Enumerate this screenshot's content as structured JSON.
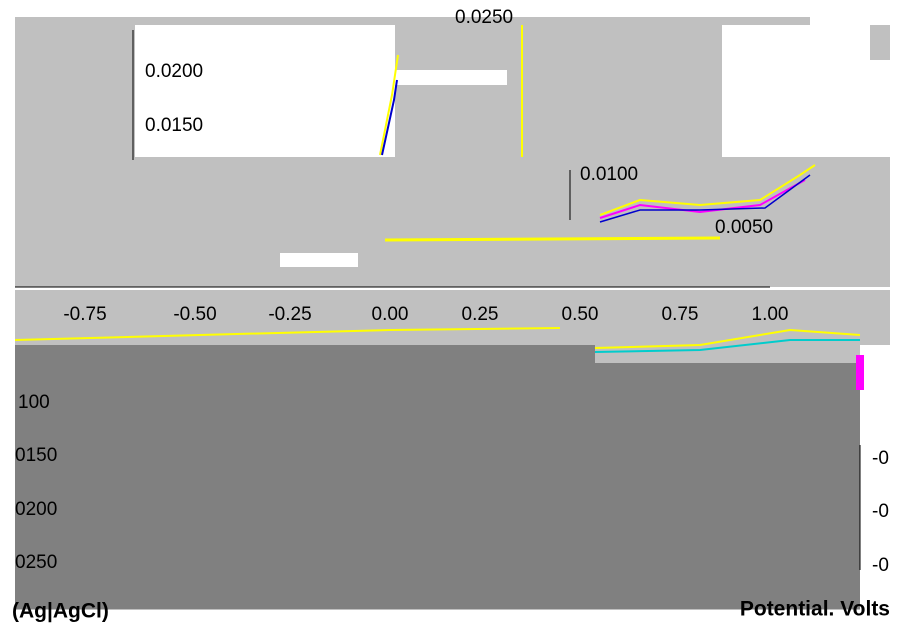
{
  "top_axis_labels": [
    "0.0250",
    "0.0200",
    "0.0150",
    "0.0100",
    "0.0050"
  ],
  "x_axis_labels": [
    "-0.75",
    "-0.50",
    "-0.25",
    "0.00",
    "0.25",
    "0.50",
    "0.75",
    "1.00"
  ],
  "lower_axis_labels": [
    "100",
    "0150",
    "0200",
    "0250"
  ],
  "right_fragments": [
    "-0",
    "-0",
    "-0"
  ],
  "left_axis_title": "(Ag|AgCl)",
  "right_axis_title": "Potential. Volts"
}
